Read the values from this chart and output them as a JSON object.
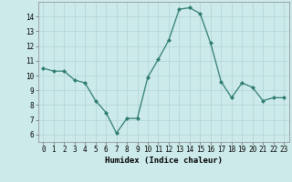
{
  "x": [
    0,
    1,
    2,
    3,
    4,
    5,
    6,
    7,
    8,
    9,
    10,
    11,
    12,
    13,
    14,
    15,
    16,
    17,
    18,
    19,
    20,
    21,
    22,
    23
  ],
  "y": [
    10.5,
    10.3,
    10.3,
    9.7,
    9.5,
    8.3,
    7.5,
    6.1,
    7.1,
    7.1,
    9.9,
    11.1,
    12.4,
    14.5,
    14.6,
    14.2,
    12.2,
    9.6,
    8.5,
    9.5,
    9.2,
    8.3,
    8.5,
    8.5
  ],
  "line_color": "#2e7d6e",
  "marker": "D",
  "marker_size": 2.0,
  "bg_color": "#cdeaea",
  "grid_color": "#b0d4d4",
  "xlabel": "Humidex (Indice chaleur)",
  "ylim": [
    5.5,
    15.0
  ],
  "xlim": [
    -0.5,
    23.5
  ],
  "yticks": [
    6,
    7,
    8,
    9,
    10,
    11,
    12,
    13,
    14
  ],
  "xticks": [
    0,
    1,
    2,
    3,
    4,
    5,
    6,
    7,
    8,
    9,
    10,
    11,
    12,
    13,
    14,
    15,
    16,
    17,
    18,
    19,
    20,
    21,
    22,
    23
  ],
  "label_fontsize": 6.5,
  "tick_fontsize": 5.5
}
